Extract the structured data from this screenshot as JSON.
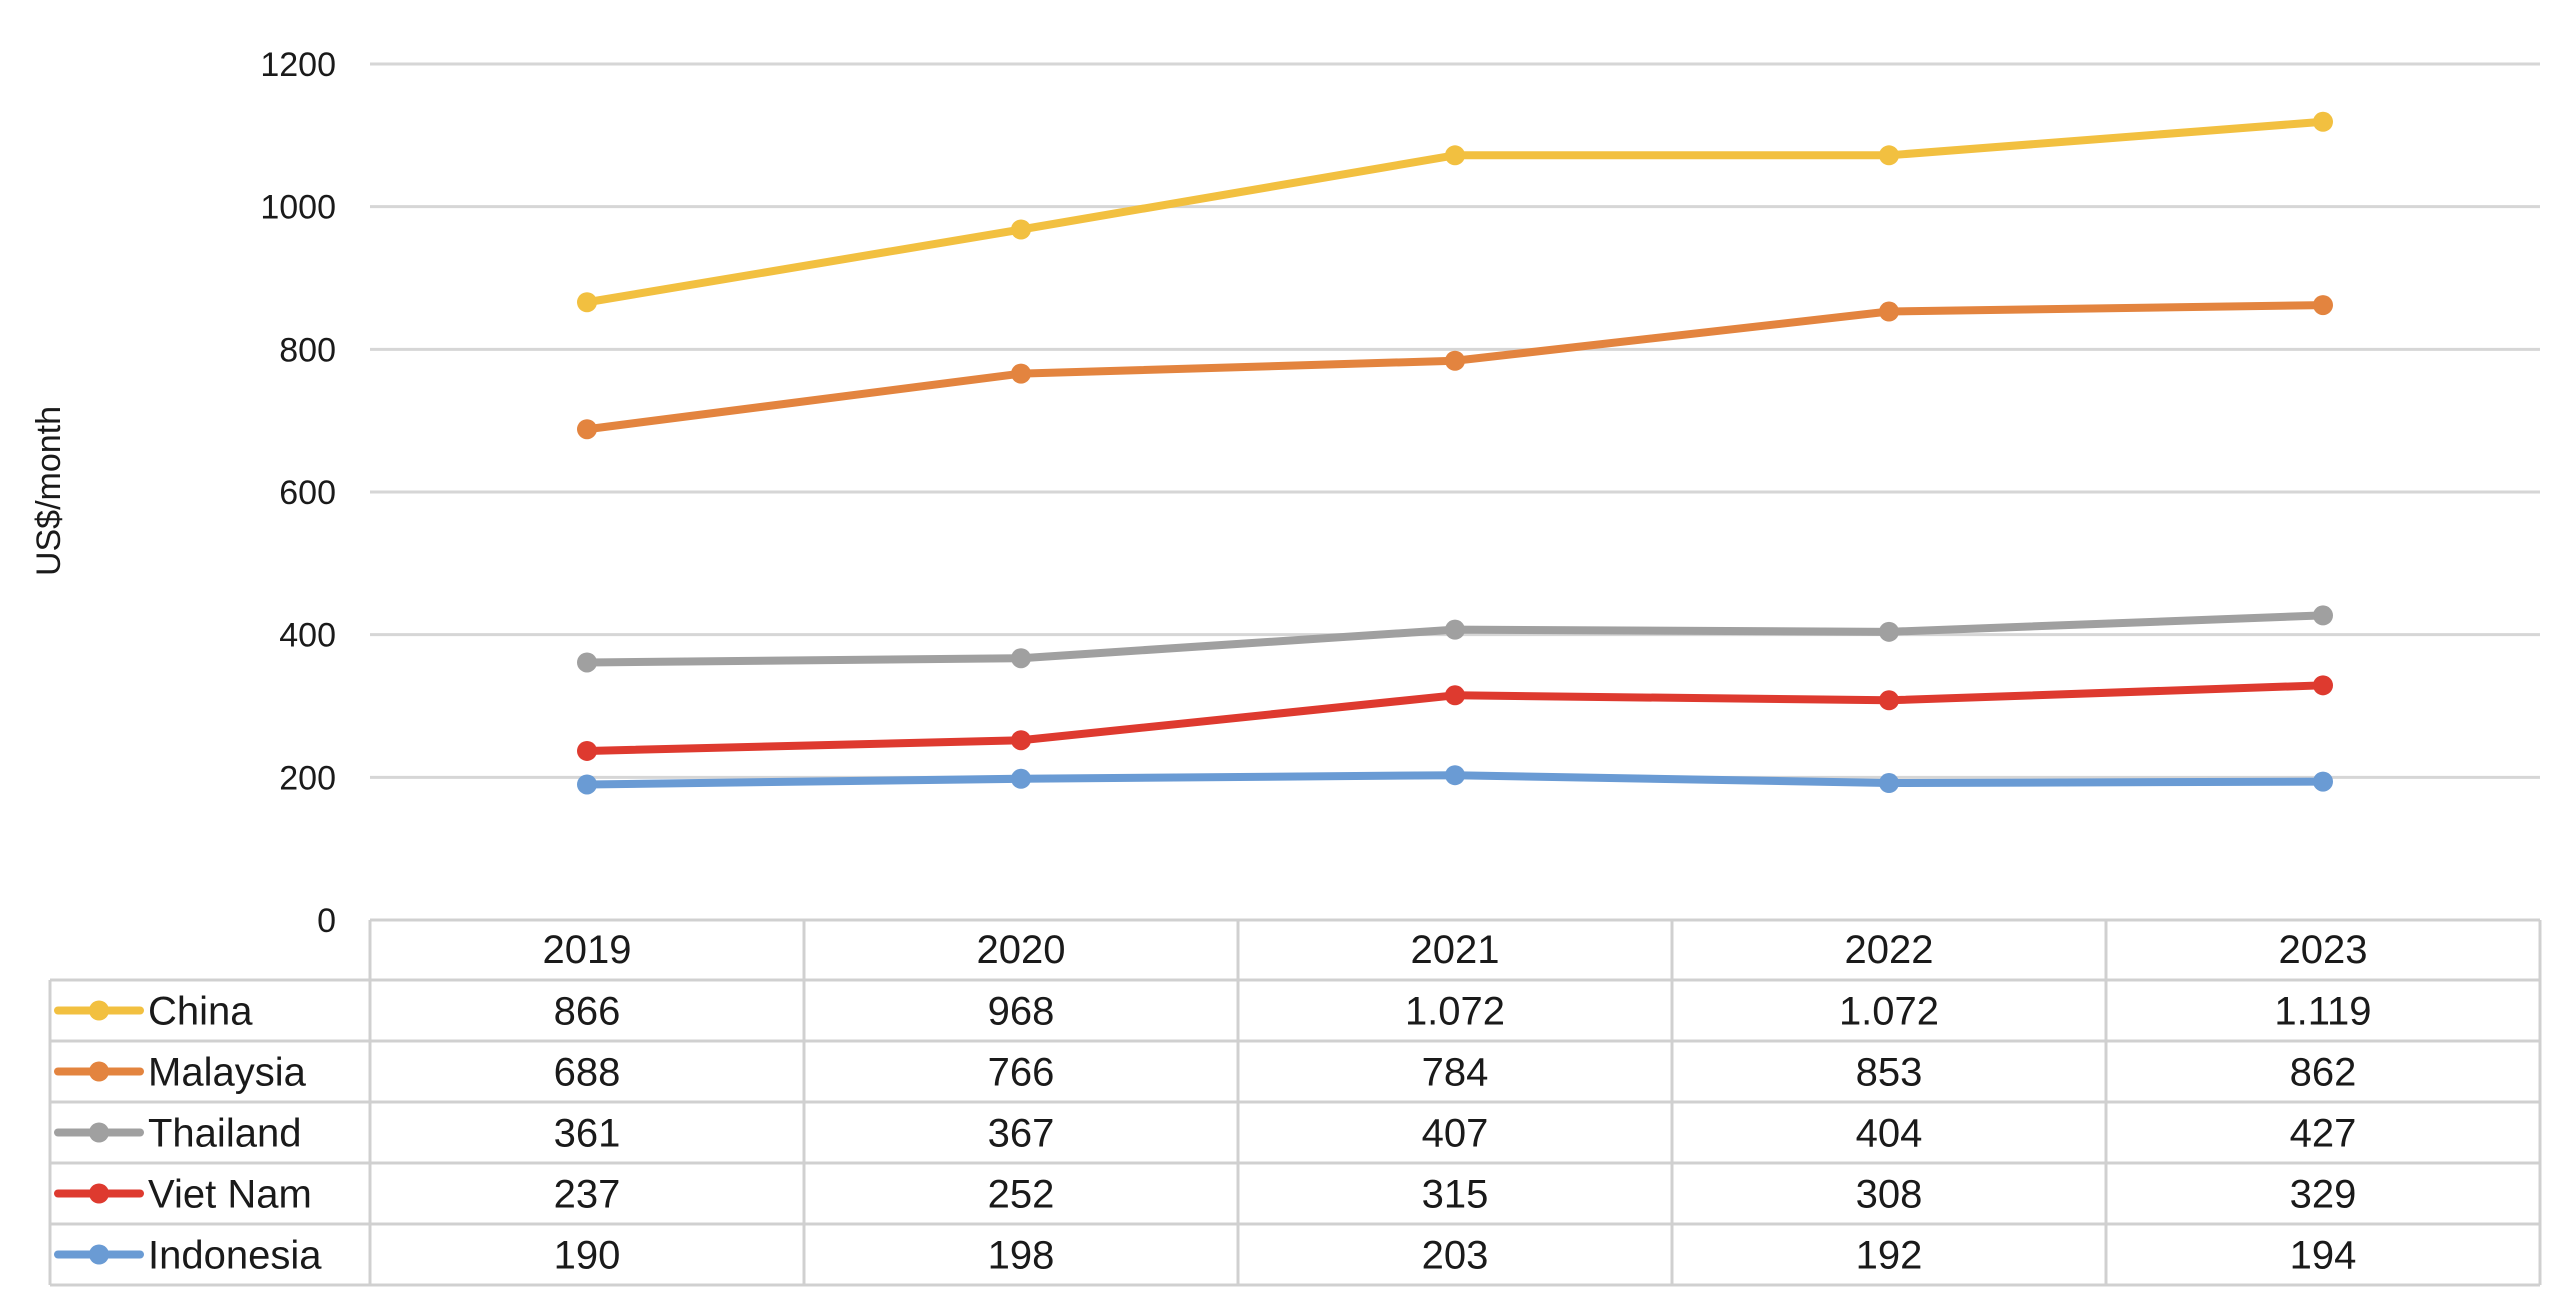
{
  "chart_data": {
    "type": "line",
    "ylabel": "US$/month",
    "ylim": [
      0,
      1200
    ],
    "yticks": [
      "0",
      "200",
      "400",
      "600",
      "800",
      "1000",
      "1200"
    ],
    "grid": true,
    "legend": "data table below plot",
    "categories": [
      "2019",
      "2020",
      "2021",
      "2022",
      "2023"
    ],
    "series": [
      {
        "name": "China",
        "color": "#F2C040",
        "values": [
          866,
          968,
          1072,
          1072,
          1119
        ],
        "labels": [
          "866",
          "968",
          "1.072",
          "1.072",
          "1.119"
        ]
      },
      {
        "name": "Malaysia",
        "color": "#E3843F",
        "values": [
          688,
          766,
          784,
          853,
          862
        ],
        "labels": [
          "688",
          "766",
          "784",
          "853",
          "862"
        ]
      },
      {
        "name": "Thailand",
        "color": "#A0A0A0",
        "values": [
          361,
          367,
          407,
          404,
          427
        ],
        "labels": [
          "361",
          "367",
          "407",
          "404",
          "427"
        ]
      },
      {
        "name": "Viet Nam",
        "color": "#DE3A2F",
        "values": [
          237,
          252,
          315,
          308,
          329
        ],
        "labels": [
          "237",
          "252",
          "315",
          "308",
          "329"
        ]
      },
      {
        "name": "Indonesia",
        "color": "#6A9BD4",
        "values": [
          190,
          198,
          203,
          192,
          194
        ],
        "labels": [
          "190",
          "198",
          "203",
          "192",
          "194"
        ]
      }
    ]
  }
}
